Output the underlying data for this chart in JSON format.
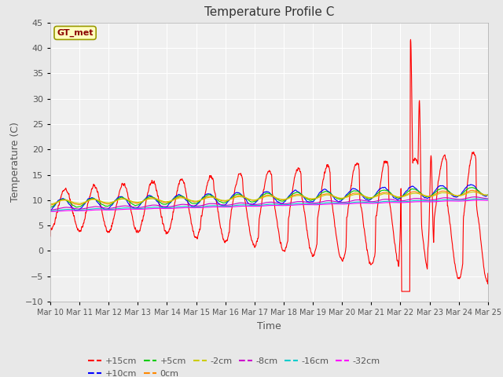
{
  "title": "Temperature Profile C",
  "xlabel": "Time",
  "ylabel": "Temperature (C)",
  "ylim": [
    -10,
    45
  ],
  "bg_color": "#e8e8e8",
  "plot_bg": "#f0f0f0",
  "x_tick_labels": [
    "Mar 10",
    "Mar 11",
    "Mar 12",
    "Mar 13",
    "Mar 14",
    "Mar 15",
    "Mar 16",
    "Mar 17",
    "Mar 18",
    "Mar 19",
    "Mar 20",
    "Mar 21",
    "Mar 22",
    "Mar 23",
    "Mar 24",
    "Mar 25"
  ],
  "gt_met_label": "GT_met",
  "series": {
    "+15cm": {
      "color": "#ff0000"
    },
    "+10cm": {
      "color": "#0000ff"
    },
    "+5cm": {
      "color": "#00cc00"
    },
    "0cm": {
      "color": "#ff8800"
    },
    "-2cm": {
      "color": "#cccc00"
    },
    "-8cm": {
      "color": "#cc00cc"
    },
    "-16cm": {
      "color": "#00cccc"
    },
    "-32cm": {
      "color": "#ff00ff"
    }
  }
}
